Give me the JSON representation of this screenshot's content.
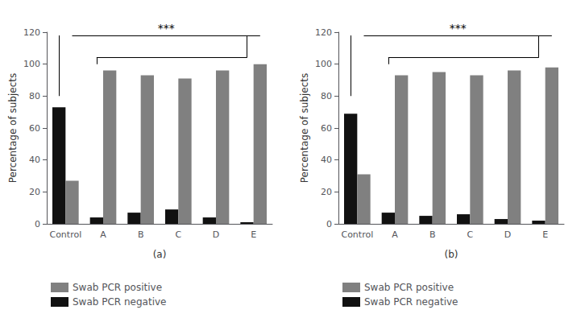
{
  "chart_data": [
    {
      "type": "bar",
      "categories": [
        "Control",
        "A",
        "B",
        "C",
        "D",
        "E"
      ],
      "series": [
        {
          "name": "Swab PCR negative",
          "color": "#111111",
          "values": [
            73,
            4,
            7,
            9,
            4,
            1
          ]
        },
        {
          "name": "Swab PCR positive",
          "color": "#808080",
          "values": [
            27,
            96,
            93,
            91,
            96,
            100
          ]
        }
      ],
      "ylabel": "Percentage of subjects",
      "xlabel": "(a)",
      "annotations": [
        "***"
      ],
      "ylim": [
        0,
        120
      ],
      "yticks": [
        0,
        20,
        40,
        60,
        80,
        100,
        120
      ],
      "grid": false,
      "legend": "lower left"
    },
    {
      "type": "bar",
      "categories": [
        "Control",
        "A",
        "B",
        "C",
        "D",
        "E"
      ],
      "series": [
        {
          "name": "Swab PCR negative",
          "color": "#111111",
          "values": [
            69,
            7,
            5,
            6,
            3,
            2
          ]
        },
        {
          "name": "Swab PCR positive",
          "color": "#808080",
          "values": [
            31,
            93,
            95,
            93,
            96,
            98
          ]
        }
      ],
      "ylabel": "Percentage of subjects",
      "xlabel": "(b)",
      "annotations": [
        "***"
      ],
      "ylim": [
        0,
        120
      ],
      "yticks": [
        0,
        20,
        40,
        60,
        80,
        100,
        120
      ],
      "grid": false,
      "legend": "lower left"
    }
  ]
}
